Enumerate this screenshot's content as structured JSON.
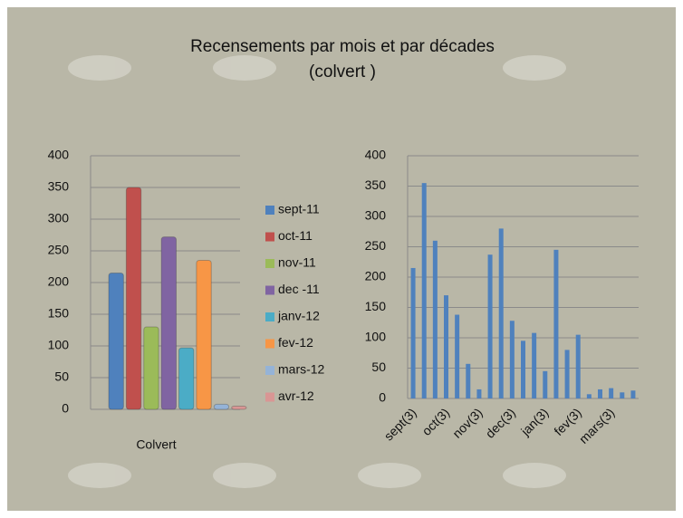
{
  "title": "Recensements par mois  et par décades",
  "subtitle": "(colvert )",
  "chart_data": [
    {
      "type": "bar",
      "categories": [
        "Colvert"
      ],
      "ylim": [
        0,
        400
      ],
      "yticks": [
        0,
        50,
        100,
        150,
        200,
        250,
        300,
        350,
        400
      ],
      "grid": true,
      "legend": "right",
      "series": [
        {
          "name": "sept-11",
          "color": "#4f81bd",
          "values": [
            215
          ]
        },
        {
          "name": "oct-11",
          "color": "#c0504d",
          "values": [
            350
          ]
        },
        {
          "name": "nov-11",
          "color": "#9bbb59",
          "values": [
            130
          ]
        },
        {
          "name": "dec -11",
          "color": "#8064a2",
          "values": [
            272
          ]
        },
        {
          "name": "janv-12",
          "color": "#4bacc6",
          "values": [
            97
          ]
        },
        {
          "name": "fev-12",
          "color": "#f79646",
          "values": [
            235
          ]
        },
        {
          "name": "mars-12",
          "color": "#95b3d7",
          "values": [
            8
          ]
        },
        {
          "name": "avr-12",
          "color": "#d99694",
          "values": [
            5
          ]
        }
      ]
    },
    {
      "type": "bar",
      "color": "#4f81bd",
      "ylim": [
        0,
        400
      ],
      "yticks": [
        0,
        50,
        100,
        150,
        200,
        250,
        300,
        350,
        400
      ],
      "grid": true,
      "categories": [
        "sept(3)",
        null,
        null,
        "oct(3)",
        null,
        null,
        "nov(3)",
        null,
        null,
        "dec(3)",
        null,
        null,
        "jan(3)",
        null,
        null,
        "fev(3)",
        null,
        null,
        "mars(3)",
        null,
        null
      ],
      "values": [
        215,
        355,
        260,
        170,
        138,
        57,
        15,
        237,
        280,
        128,
        95,
        108,
        45,
        245,
        80,
        105,
        7,
        15,
        17,
        10,
        13
      ]
    }
  ]
}
